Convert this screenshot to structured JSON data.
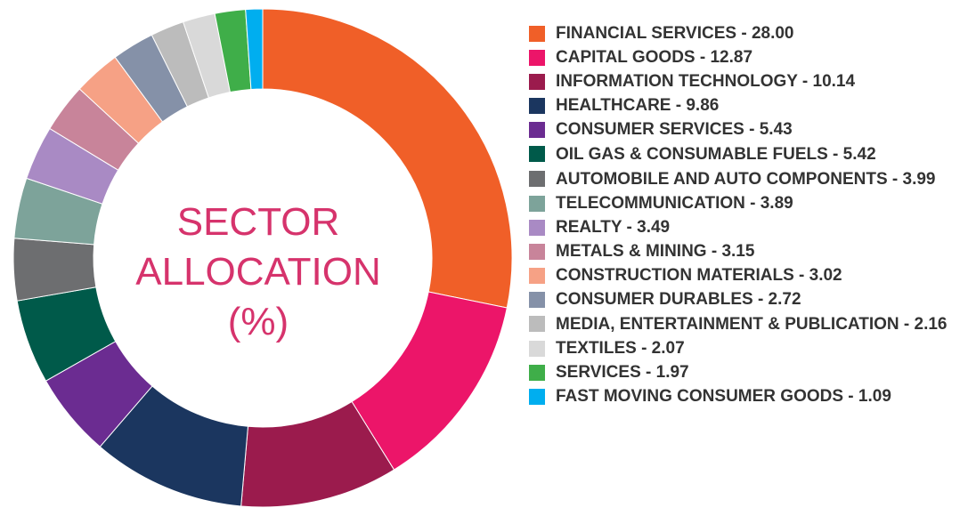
{
  "colors": {
    "title": "#d6336c",
    "legend_text": "#333333"
  },
  "center_title": {
    "line1": "SECTOR",
    "line2": "ALLOCATION",
    "line3": "(%)"
  },
  "chart_data": {
    "type": "pie",
    "variant": "donut",
    "legend_position": "right",
    "slices": [
      {
        "label": "FINANCIAL SERVICES - 28.00",
        "name": "FINANCIAL SERVICES",
        "value": 28.0,
        "color": "#f05f28"
      },
      {
        "label": "CAPITAL GOODS - 12.87",
        "name": "CAPITAL GOODS",
        "value": 12.87,
        "color": "#ec1569"
      },
      {
        "label": "INFORMATION TECHNOLOGY - 10.14",
        "name": "INFORMATION TECHNOLOGY",
        "value": 10.14,
        "color": "#9b1b4d"
      },
      {
        "label": "HEALTHCARE - 9.86",
        "name": "HEALTHCARE",
        "value": 9.86,
        "color": "#1b365f"
      },
      {
        "label": "CONSUMER SERVICES - 5.43",
        "name": "CONSUMER SERVICES",
        "value": 5.43,
        "color": "#6b2c91"
      },
      {
        "label": "OIL GAS & CONSUMABLE FUELS - 5.42",
        "name": "OIL GAS & CONSUMABLE FUELS",
        "value": 5.42,
        "color": "#005a4a"
      },
      {
        "label": "AUTOMOBILE AND AUTO COMPONENTS - 3.99",
        "name": "AUTOMOBILE AND AUTO COMPONENTS",
        "value": 3.99,
        "color": "#6d6e70"
      },
      {
        "label": "TELECOMMUNICATION - 3.89",
        "name": "TELECOMMUNICATION",
        "value": 3.89,
        "color": "#7da39a"
      },
      {
        "label": "REALTY - 3.49",
        "name": "REALTY",
        "value": 3.49,
        "color": "#a98ac4"
      },
      {
        "label": "METALS & MINING - 3.15",
        "name": "METALS & MINING",
        "value": 3.15,
        "color": "#c8849a"
      },
      {
        "label": "CONSTRUCTION MATERIALS - 3.02",
        "name": "CONSTRUCTION MATERIALS",
        "value": 3.02,
        "color": "#f6a185"
      },
      {
        "label": "CONSUMER DURABLES - 2.72",
        "name": "CONSUMER DURABLES",
        "value": 2.72,
        "color": "#8591a8"
      },
      {
        "label": "MEDIA, ENTERTAINMENT & PUBLICATION - 2.16",
        "name": "MEDIA, ENTERTAINMENT & PUBLICATION",
        "value": 2.16,
        "color": "#bcbcbc"
      },
      {
        "label": "TEXTILES  - 2.07",
        "name": "TEXTILES",
        "value": 2.07,
        "color": "#d9d9d9"
      },
      {
        "label": "SERVICES  - 1.97",
        "name": "SERVICES",
        "value": 1.97,
        "color": "#3fae49"
      },
      {
        "label": "FAST MOVING CONSUMER GOODS  - 1.09",
        "name": "FAST MOVING CONSUMER GOODS",
        "value": 1.09,
        "color": "#00aeef"
      }
    ]
  }
}
